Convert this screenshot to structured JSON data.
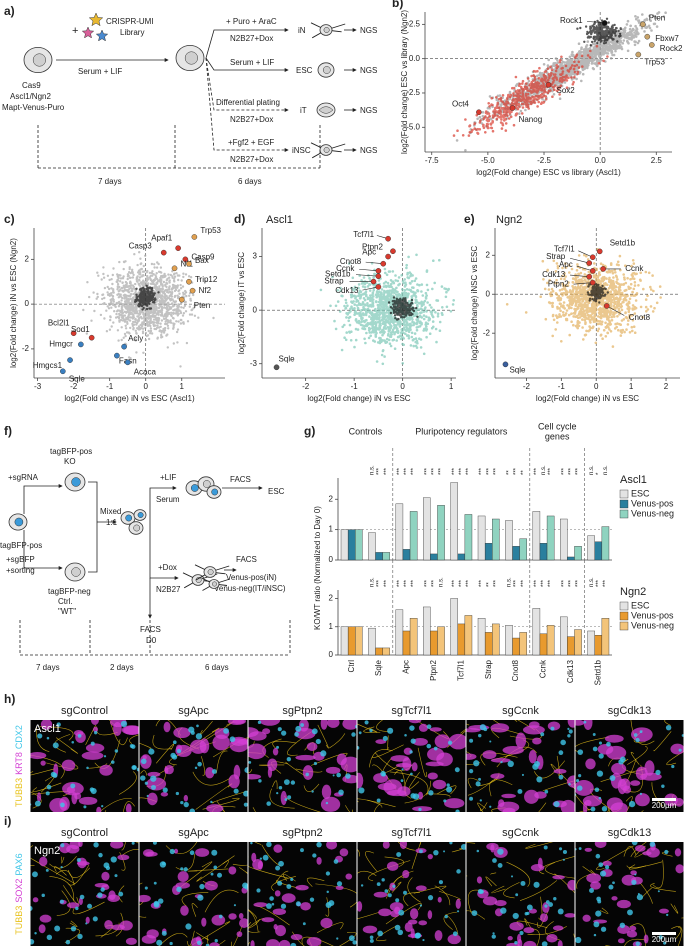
{
  "panels": {
    "a": {
      "label": "a)",
      "texts": [
        "a)",
        "CRISPR-UMI",
        "Library",
        "+",
        "Cas9",
        "Ascl1/Ngn2",
        "Mapt-Venus-Puro",
        "Serum + LIF",
        "+ Puro + AraC",
        "N2B27+Dox",
        "iN",
        "NGS",
        "Serum + LIF",
        "ESC",
        "NGS",
        "Differential plating",
        "N2B27+Dox",
        "iT",
        "NGS",
        "+Fgf2 + EGF",
        "N2B27+Dox",
        "iNSC",
        "NGS",
        "7 days",
        "6 days"
      ]
    },
    "b": {
      "label": "b)",
      "xlabel": "log2(Fold change) ESC vs library (Ascl1)",
      "ylabel": "log2(Fold change) ESC vs library (Ngn2)",
      "xlim": [
        -7.8,
        3.2
      ],
      "ylim": [
        -6.8,
        3.4
      ],
      "xticks": [
        -7.5,
        {
          "value": -5,
          "label": "-5.0"
        },
        -2.5,
        {
          "value": 0,
          "label": "0.0"
        },
        2.5
      ],
      "yticks": [
        {
          "value": -5,
          "label": "-5.0"
        },
        -2.5,
        {
          "value": 0,
          "label": "0.0"
        },
        2.5
      ],
      "points": [
        {
          "name": "Rock1",
          "x": 0.2,
          "y": 2.6,
          "color": "#111111"
        },
        {
          "name": "Pten",
          "x": 1.9,
          "y": 2.5,
          "color": "#c9a46a"
        },
        {
          "name": "Fbxw7",
          "x": 2.1,
          "y": 1.6,
          "color": "#c9a46a"
        },
        {
          "name": "Rock2",
          "x": 2.3,
          "y": 1.0,
          "color": "#c9a46a"
        },
        {
          "name": "Trp53",
          "x": 1.7,
          "y": 0.3,
          "color": "#c9a46a"
        },
        {
          "name": "Sox2",
          "x": -2.3,
          "y": -1.9,
          "color": "#d83a2e"
        },
        {
          "name": "Oct4",
          "x": -5.4,
          "y": -3.9,
          "color": "#d83a2e"
        },
        {
          "name": "Nanog",
          "x": -3.9,
          "y": -3.6,
          "color": "#d83a2e"
        }
      ]
    },
    "c": {
      "label": "c)",
      "xlabel": "log2(Fold change) iN vs ESC (Ascl1)",
      "ylabel": "log2(Fold change) iN vs ESC (Ngn2)",
      "xlim": [
        -3.1,
        2.2
      ],
      "ylim": [
        -3.3,
        3.4
      ],
      "xticks": [
        -3,
        -2,
        -1,
        0,
        1
      ],
      "yticks": [
        -2,
        0,
        2
      ],
      "points": [
        {
          "name": "Trp53",
          "x": 1.35,
          "y": 3.0,
          "color": "#e0a050"
        },
        {
          "name": "Apaf1",
          "x": 0.9,
          "y": 2.5,
          "color": "#d83a2e"
        },
        {
          "name": "Casp3",
          "x": 0.5,
          "y": 2.3,
          "color": "#d83a2e"
        },
        {
          "name": "Casp9",
          "x": 1.1,
          "y": 2.0,
          "color": "#d83a2e"
        },
        {
          "name": "Nf1",
          "x": 0.8,
          "y": 1.6,
          "color": "#e0a050"
        },
        {
          "name": "Bax",
          "x": 1.2,
          "y": 1.8,
          "color": "#e0a050"
        },
        {
          "name": "Trip12",
          "x": 1.2,
          "y": 1.0,
          "color": "#e0a050"
        },
        {
          "name": "Nf2",
          "x": 1.3,
          "y": 0.6,
          "color": "#e0a050"
        },
        {
          "name": "Pten",
          "x": 1.0,
          "y": 0.2,
          "color": "#e0a050"
        },
        {
          "name": "Bcl2l1",
          "x": -2.0,
          "y": -1.3,
          "color": "#d83a2e"
        },
        {
          "name": "Sod1",
          "x": -1.5,
          "y": -1.5,
          "color": "#d83a2e"
        },
        {
          "name": "Acly",
          "x": -0.6,
          "y": -1.9,
          "color": "#3a7fc0"
        },
        {
          "name": "Hmgcr",
          "x": -1.8,
          "y": -1.8,
          "color": "#3a7fc0"
        },
        {
          "name": "Fasn",
          "x": -0.8,
          "y": -2.3,
          "color": "#3a7fc0"
        },
        {
          "name": "Hmgcs1",
          "x": -2.1,
          "y": -2.5,
          "color": "#3a7fc0"
        },
        {
          "name": "Acaca",
          "x": -0.5,
          "y": -2.6,
          "color": "#3a7fc0"
        },
        {
          "name": "Sqle",
          "x": -2.3,
          "y": -3.0,
          "color": "#3a7fc0"
        }
      ]
    },
    "d": {
      "label": "d)",
      "title": "Ascl1",
      "xlabel": "log2(Fold change) iN vs ESC",
      "ylabel": "log2(Fold change) iT vs ESC",
      "xlim": [
        -2.9,
        1.1
      ],
      "ylim": [
        -3.8,
        4.6
      ],
      "xticks": [
        -2,
        -1,
        0,
        1
      ],
      "yticks": [
        -3,
        0,
        3
      ],
      "points": [
        {
          "name": "Tcf7l1",
          "x": -0.3,
          "y": 4.0,
          "color": "#d83a2e"
        },
        {
          "name": "Ptpn2",
          "x": -0.2,
          "y": 3.3,
          "color": "#d83a2e"
        },
        {
          "name": "Apc",
          "x": -0.3,
          "y": 3.0,
          "color": "#d83a2e"
        },
        {
          "name": "Cnot8",
          "x": -0.4,
          "y": 2.6,
          "color": "#d83a2e"
        },
        {
          "name": "Ccnk",
          "x": -0.5,
          "y": 2.2,
          "color": "#d83a2e"
        },
        {
          "name": "Setd1b",
          "x": -0.5,
          "y": 1.9,
          "color": "#d83a2e"
        },
        {
          "name": "Strap",
          "x": -0.6,
          "y": 1.6,
          "color": "#d83a2e"
        },
        {
          "name": "Cdk13",
          "x": -0.5,
          "y": 1.3,
          "color": "#d83a2e"
        },
        {
          "name": "Sqle",
          "x": -2.6,
          "y": -3.2,
          "color": "#555555"
        }
      ]
    },
    "e": {
      "label": "e)",
      "title": "Ngn2",
      "xlabel": "log2(Fold change) iN vs ESC",
      "ylabel": "log2(Fold change) iNSC vs ESC",
      "xlim": [
        -2.9,
        2.4
      ],
      "ylim": [
        -4.3,
        3.4
      ],
      "xticks": [
        -2,
        -1,
        0,
        1,
        2
      ],
      "yticks": [
        -2,
        0,
        2
      ],
      "points": [
        {
          "name": "Setd1b",
          "x": 0.1,
          "y": 2.2,
          "color": "#d83a2e"
        },
        {
          "name": "Tcf7l1",
          "x": -0.1,
          "y": 1.9,
          "color": "#d83a2e"
        },
        {
          "name": "Strap",
          "x": -0.2,
          "y": 1.6,
          "color": "#d83a2e"
        },
        {
          "name": "Ccnk",
          "x": 0.2,
          "y": 1.3,
          "color": "#d83a2e"
        },
        {
          "name": "Apc",
          "x": -0.1,
          "y": 1.2,
          "color": "#d83a2e"
        },
        {
          "name": "Cdk13",
          "x": -0.2,
          "y": 0.9,
          "color": "#d83a2e"
        },
        {
          "name": "Ptpn2",
          "x": -0.1,
          "y": 0.6,
          "color": "#d83a2e"
        },
        {
          "name": "Cnot8",
          "x": 0.3,
          "y": -0.6,
          "color": "#d83a2e"
        },
        {
          "name": "Sqle",
          "x": -2.6,
          "y": -3.6,
          "color": "#3a5f9e"
        }
      ]
    },
    "f": {
      "label": "f)",
      "texts": [
        "f)",
        "+sgRNA",
        "tagBFP-pos",
        "KO",
        "tagBFP-pos",
        "Mixed",
        "1:1",
        "+sgBFP",
        "+sorting",
        "tagBFP-neg",
        "Ctrl.",
        "\"WT\"",
        "+LIF",
        "Serum",
        "FACS",
        "ESC",
        "+Dox",
        "N2B27",
        "FACS",
        "Venus-pos(iN)",
        "Venus-neg(IT/iNSC)",
        "FACS",
        "D0",
        "7 days",
        "2 days",
        "6 days"
      ]
    },
    "g": {
      "label": "g)",
      "ylabel": "KO/WT ratio (Normalized to Day 0)",
      "groups": [
        "Controls",
        "Pluripotency regulators",
        "Cell cycle",
        "genes"
      ],
      "categories": [
        "Ctrl",
        "Sqle",
        "Apc",
        "Ptpn2",
        "Tcf7l1",
        "Strap",
        "Cnot8",
        "Ccnk",
        "Cdk13",
        "Setd1b"
      ],
      "subpanels": [
        {
          "name": "Ascl1",
          "ylim": [
            0,
            2.7
          ],
          "yticks": [
            0,
            1,
            2
          ],
          "hline": 1,
          "series": [
            {
              "name": "ESC",
              "color": "#e3e3e3",
              "values": [
                1,
                0.9,
                1.85,
                2.05,
                2.55,
                1.45,
                1.3,
                1.6,
                1.35,
                0.8
              ]
            },
            {
              "name": "Venus-pos",
              "color": "#2a7f9e",
              "values": [
                1,
                0.25,
                0.35,
                0.2,
                0.2,
                0.55,
                0.45,
                0.55,
                0.1,
                0.6
              ]
            },
            {
              "name": "Venus-neg",
              "color": "#8fd3c0",
              "values": [
                1,
                0.25,
                1.6,
                1.8,
                1.5,
                1.35,
                0.7,
                1.45,
                0.45,
                1.1
              ]
            }
          ],
          "significance": [
            null,
            [
              "n.s.",
              "***",
              "***"
            ],
            [
              "***",
              "***",
              "***"
            ],
            [
              "***",
              "***",
              "***"
            ],
            [
              "***",
              "***",
              "***"
            ],
            [
              "***",
              "***",
              "***"
            ],
            [
              "**",
              "***",
              "**"
            ],
            [
              "***",
              "n.s.",
              "***"
            ],
            [
              "***",
              "***",
              "***"
            ],
            [
              "n.s.",
              "*",
              "n.s."
            ]
          ]
        },
        {
          "name": "Ngn2",
          "ylim": [
            0,
            2.3
          ],
          "yticks": [
            0,
            1,
            2
          ],
          "hline": 1,
          "series": [
            {
              "name": "ESC",
              "color": "#e3e3e3",
              "values": [
                1,
                0.95,
                1.6,
                1.7,
                2.0,
                1.3,
                1.05,
                1.65,
                1.35,
                0.85
              ]
            },
            {
              "name": "Venus-pos",
              "color": "#e89a2e",
              "values": [
                1,
                0.25,
                0.85,
                0.85,
                1.1,
                0.8,
                0.6,
                0.75,
                0.65,
                0.7
              ]
            },
            {
              "name": "Venus-neg",
              "color": "#f3c47a",
              "values": [
                1,
                0.25,
                1.3,
                1.0,
                1.4,
                1.1,
                0.8,
                1.05,
                0.9,
                1.3
              ]
            }
          ],
          "significance": [
            null,
            [
              "n.s.",
              "***",
              "***"
            ],
            [
              "***",
              "***",
              "***"
            ],
            [
              "***",
              "***",
              "n.s."
            ],
            [
              "***",
              "***",
              "***"
            ],
            [
              "***",
              "**",
              "***"
            ],
            [
              "n.s.",
              "***",
              "***"
            ],
            [
              "***",
              "***",
              "***"
            ],
            [
              "***",
              "***",
              "***"
            ],
            [
              "n.s.",
              "***",
              "***"
            ]
          ]
        }
      ]
    },
    "h": {
      "label": "h)",
      "row": "Ascl1",
      "stains": [
        {
          "text": "TUBB3",
          "color": "#e8c21a"
        },
        {
          "text": "KRT8",
          "color": "#d43fd4"
        },
        {
          "text": "CDX2",
          "color": "#3fc6e8"
        }
      ],
      "columns": [
        "sgControl",
        "sgApc",
        "sgPtpn2",
        "sgTcf7l1",
        "sgCcnk",
        "sgCdk13"
      ],
      "scale": "200µm"
    },
    "i": {
      "label": "i)",
      "row": "Ngn2",
      "stains": [
        {
          "text": "TUBB3",
          "color": "#e8c21a"
        },
        {
          "text": "SOX2",
          "color": "#d43fd4"
        },
        {
          "text": "PAX6",
          "color": "#3fc6e8"
        }
      ],
      "columns": [
        "sgControl",
        "sgApc",
        "sgPtpn2",
        "sgTcf7l1",
        "sgCcnk",
        "sgCdk13"
      ],
      "scale": "200µm"
    }
  }
}
